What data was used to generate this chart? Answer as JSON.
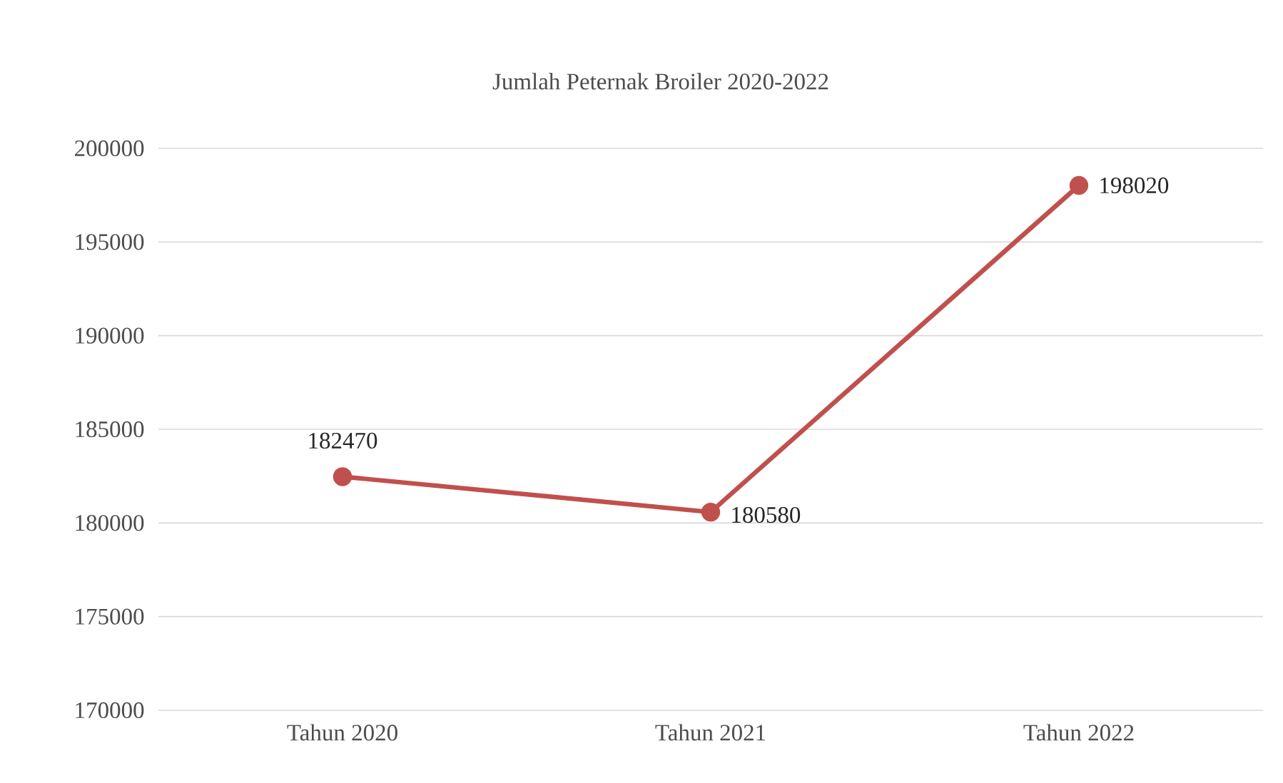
{
  "chart_data": {
    "type": "line",
    "title": "Jumlah Peternak Broiler 2020-2022",
    "categories": [
      "Tahun 2020",
      "Tahun 2021",
      "Tahun 2022"
    ],
    "series": [
      {
        "color": "#c0504d",
        "values": [
          182470,
          180580,
          198020
        ]
      }
    ],
    "ylim": [
      170000,
      200000
    ],
    "yticks": [
      170000,
      175000,
      180000,
      185000,
      190000,
      195000,
      200000
    ],
    "grid": "y",
    "marker": "circle",
    "line_style": "solid",
    "data_labels": true
  }
}
